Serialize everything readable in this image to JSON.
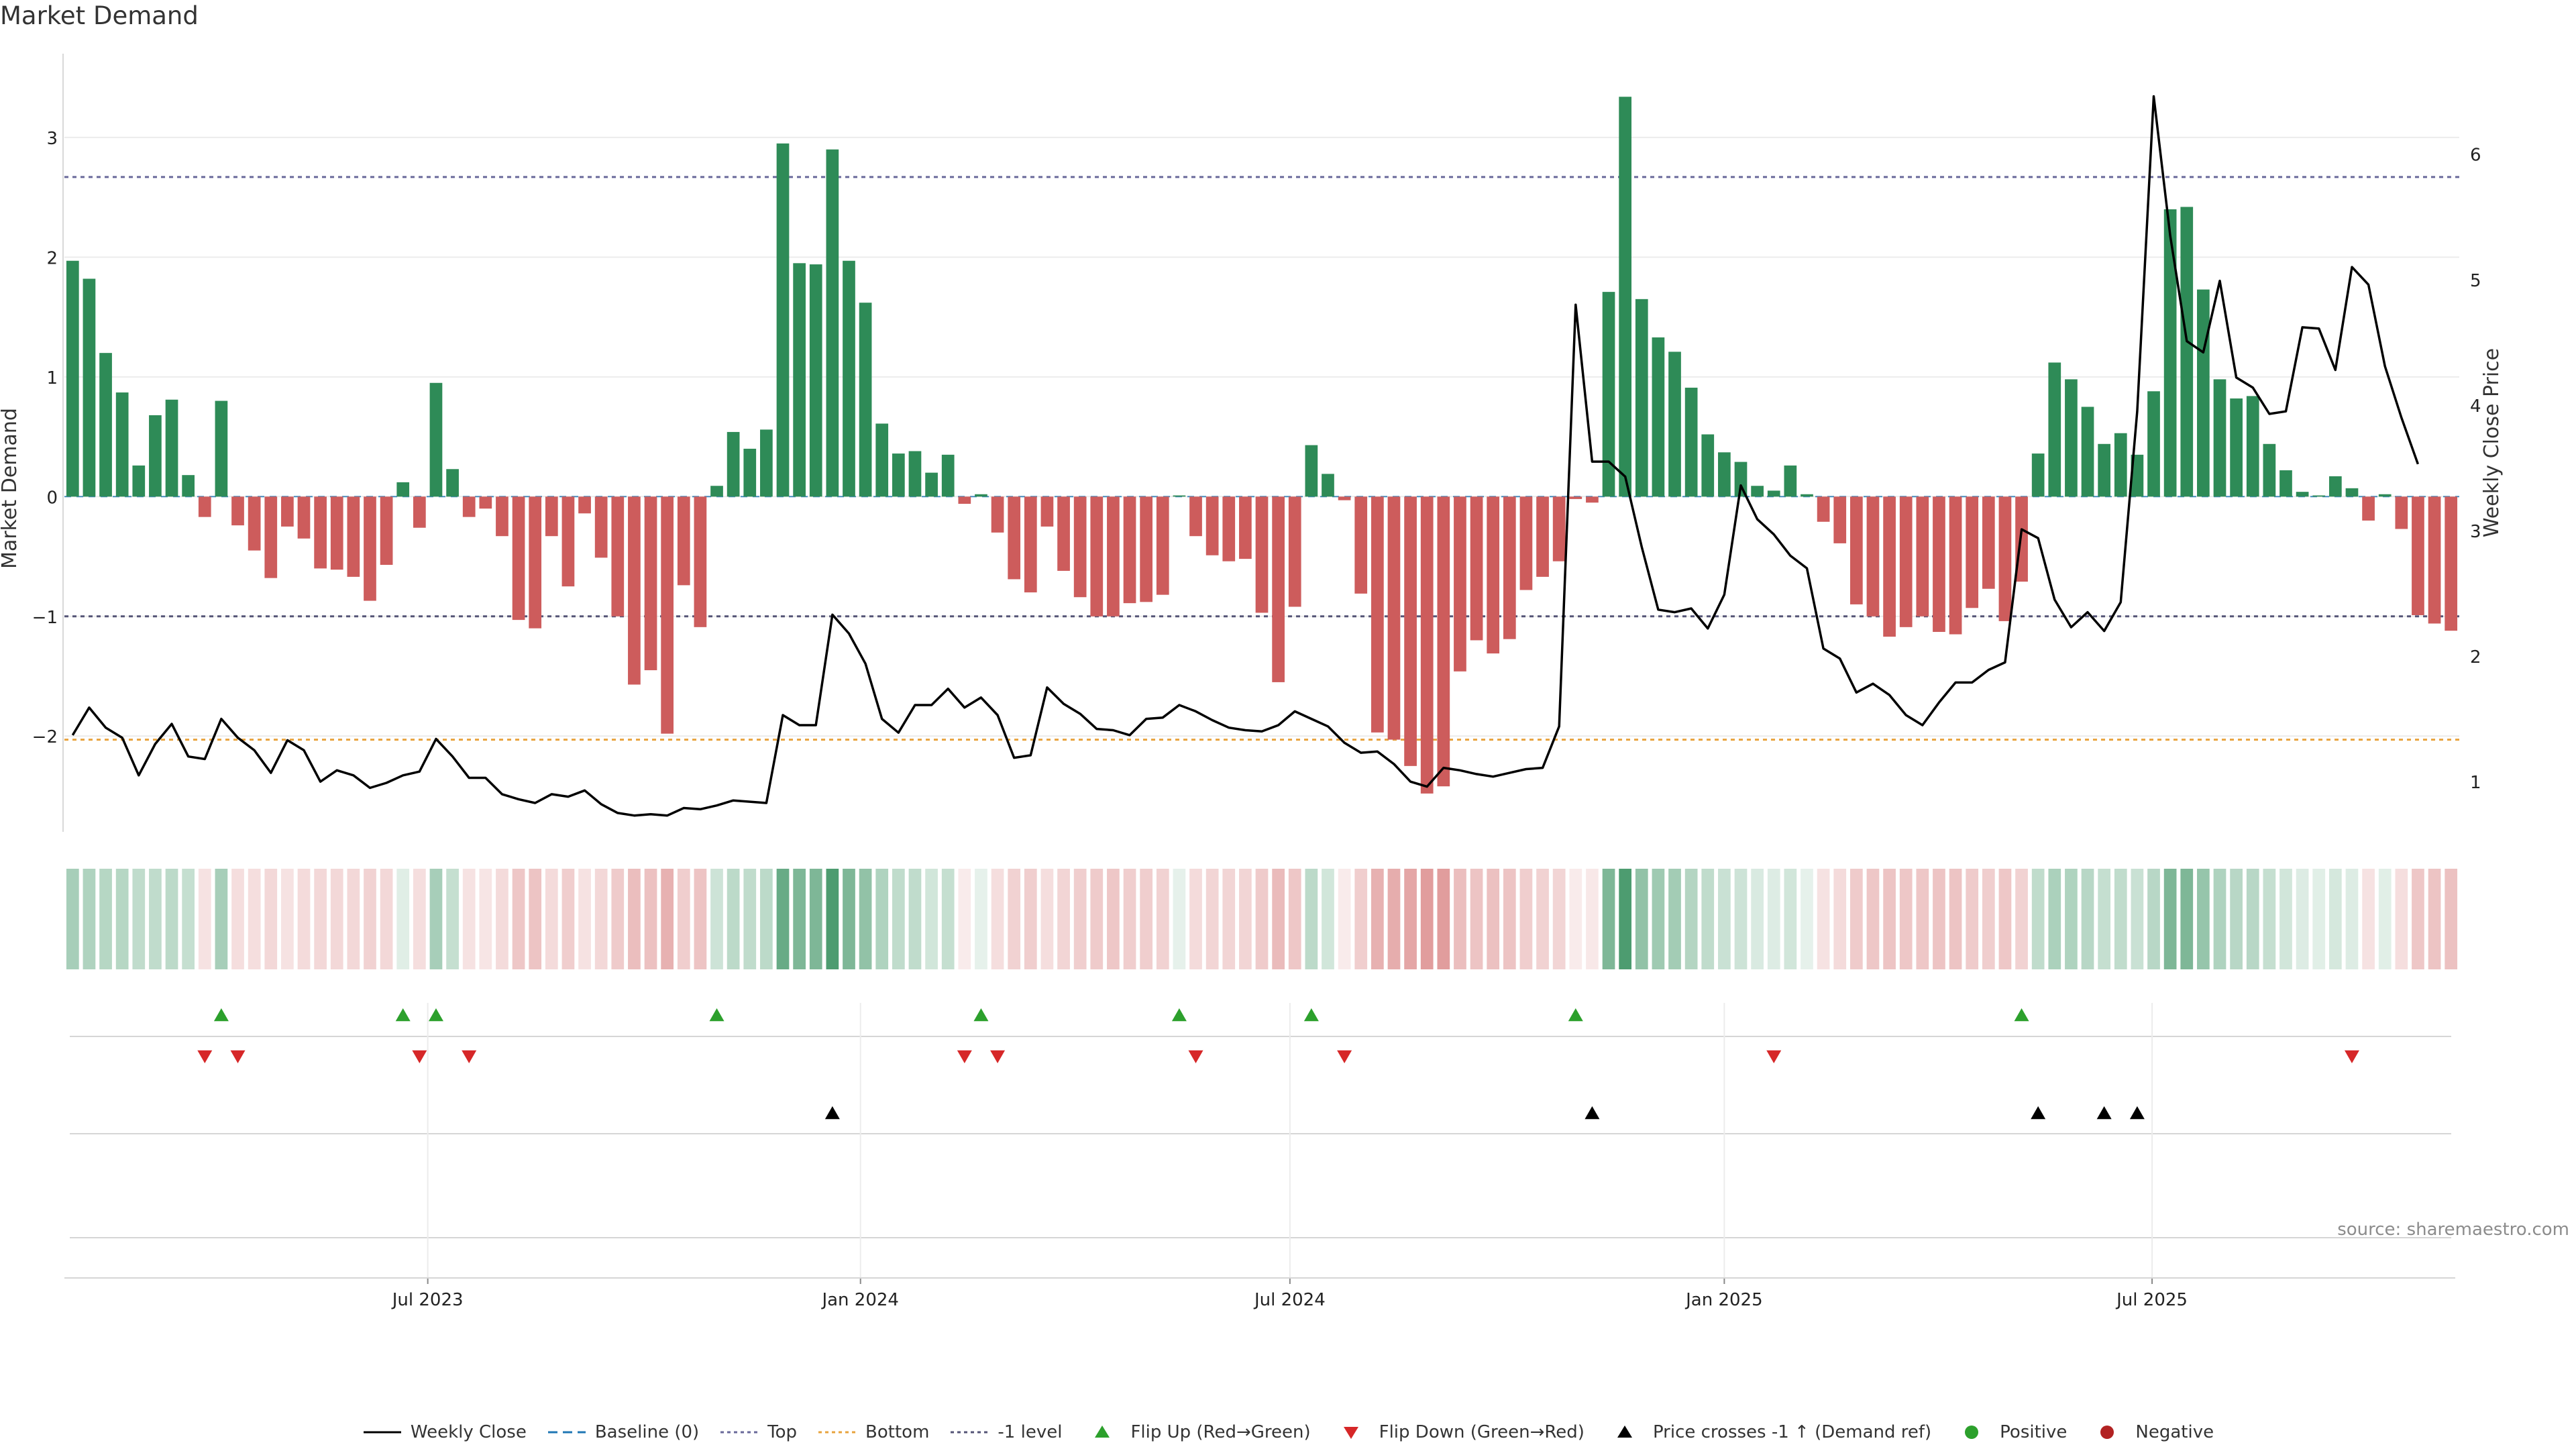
{
  "title": "Market Demand",
  "source": "source: sharemaestro.com",
  "colors": {
    "positive": "#2e8b57",
    "negative": "#cd5c5c",
    "price": "#000000",
    "top": "#6a6a9a",
    "bottom": "#e8a33d",
    "level": "#555577",
    "flip_up": "#2ca02c",
    "flip_down": "#d62728",
    "cross": "#000000",
    "positive_dot": "#2ca02c",
    "negative_dot": "#b22222"
  },
  "legend": [
    {
      "label": "Weekly Close",
      "kind": "line-solid",
      "color": "#000000"
    },
    {
      "label": "Baseline (0)",
      "kind": "line-dash",
      "color": "#1f77b4"
    },
    {
      "label": "Top",
      "kind": "line-dot",
      "color": "#6a6a9a"
    },
    {
      "label": "Bottom",
      "kind": "line-dot",
      "color": "#e8a33d"
    },
    {
      "label": "-1 level",
      "kind": "line-dot",
      "color": "#555577"
    },
    {
      "label": "Flip Up (Red→Green)",
      "kind": "tri-up",
      "color": "#2ca02c"
    },
    {
      "label": "Flip Down (Green→Red)",
      "kind": "tri-down",
      "color": "#d62728"
    },
    {
      "label": "Price crosses -1 ↑ (Demand ref)",
      "kind": "tri-up",
      "color": "#000000"
    },
    {
      "label": "Positive",
      "kind": "dot",
      "color": "#2ca02c"
    },
    {
      "label": "Negative",
      "kind": "dot",
      "color": "#b22222"
    }
  ],
  "chart_data": {
    "type": "bar",
    "title": "Market Demand",
    "xlabel": "",
    "ylabel": "Market Demand",
    "y2label": "Weekly Close Price",
    "ylim": [
      -2.8,
      3.7
    ],
    "y2lim": [
      0.6,
      6.8
    ],
    "yticks": [
      -2,
      -1,
      0,
      1,
      2,
      3
    ],
    "y2ticks": [
      1,
      2,
      3,
      4,
      5,
      6
    ],
    "reference_lines": {
      "top": 2.67,
      "bottom": -2.03,
      "minus_one": -1.0,
      "baseline": 0
    },
    "x_start_week": 0,
    "x_tick_labels": [
      {
        "label": "Jul 2023",
        "week": 21.5
      },
      {
        "label": "Jan 2024",
        "week": 47.7
      },
      {
        "label": "Jul 2024",
        "week": 73.7
      },
      {
        "label": "Jan 2025",
        "week": 100.0
      },
      {
        "label": "Jul 2025",
        "week": 125.9
      }
    ],
    "demand": [
      1.97,
      1.82,
      1.2,
      0.87,
      0.26,
      0.68,
      0.81,
      0.18,
      -0.17,
      0.8,
      -0.24,
      -0.45,
      -0.68,
      -0.25,
      -0.35,
      -0.6,
      -0.61,
      -0.67,
      -0.87,
      -0.57,
      0.12,
      -0.26,
      0.95,
      0.23,
      -0.17,
      -0.1,
      -0.33,
      -1.03,
      -1.1,
      -0.33,
      -0.75,
      -0.14,
      -0.51,
      -1.0,
      -1.57,
      -1.45,
      -1.98,
      -0.74,
      -1.09,
      0.09,
      0.54,
      0.4,
      0.56,
      2.95,
      1.95,
      1.94,
      2.9,
      1.97,
      1.62,
      0.61,
      0.36,
      0.38,
      0.2,
      0.35,
      -0.06,
      0.02,
      -0.3,
      -0.69,
      -0.8,
      -0.25,
      -0.62,
      -0.84,
      -1.0,
      -1.0,
      -0.89,
      -0.88,
      -0.82,
      0.01,
      -0.33,
      -0.49,
      -0.54,
      -0.52,
      -0.97,
      -1.55,
      -0.92,
      0.43,
      0.19,
      -0.03,
      -0.81,
      -1.97,
      -2.03,
      -2.25,
      -2.48,
      -2.42,
      -1.46,
      -1.2,
      -1.31,
      -1.19,
      -0.78,
      -0.67,
      -0.54,
      -0.02,
      -0.05,
      1.71,
      3.34,
      1.65,
      1.33,
      1.21,
      0.91,
      0.52,
      0.37,
      0.29,
      0.09,
      0.05,
      0.26,
      0.02,
      -0.21,
      -0.39,
      -0.9,
      -1.0,
      -1.17,
      -1.09,
      -1.0,
      -1.13,
      -1.15,
      -0.93,
      -0.77,
      -1.04,
      -0.71,
      0.36,
      1.12,
      0.98,
      0.75,
      0.44,
      0.53,
      0.35,
      0.88,
      2.4,
      2.42,
      1.73,
      0.98,
      0.82,
      0.84,
      0.44,
      0.22,
      0.04,
      0.01,
      0.17,
      0.07,
      -0.2,
      0.02,
      -0.27,
      -0.99,
      -1.06,
      -1.12
    ],
    "price": [
      1.37,
      1.59,
      1.43,
      1.35,
      1.05,
      1.3,
      1.46,
      1.2,
      1.18,
      1.5,
      1.35,
      1.25,
      1.07,
      1.33,
      1.25,
      1.0,
      1.09,
      1.05,
      0.95,
      0.99,
      1.05,
      1.08,
      1.34,
      1.2,
      1.03,
      1.03,
      0.9,
      0.86,
      0.83,
      0.9,
      0.88,
      0.93,
      0.82,
      0.75,
      0.73,
      0.74,
      0.73,
      0.79,
      0.78,
      0.81,
      0.85,
      0.84,
      0.83,
      1.53,
      1.45,
      1.45,
      2.33,
      2.18,
      1.94,
      1.5,
      1.39,
      1.61,
      1.61,
      1.74,
      1.59,
      1.67,
      1.53,
      1.19,
      1.21,
      1.75,
      1.62,
      1.54,
      1.42,
      1.41,
      1.37,
      1.5,
      1.51,
      1.61,
      1.56,
      1.49,
      1.43,
      1.41,
      1.4,
      1.45,
      1.56,
      1.5,
      1.44,
      1.31,
      1.23,
      1.24,
      1.14,
      1.0,
      0.96,
      1.11,
      1.09,
      1.06,
      1.04,
      1.07,
      1.1,
      1.11,
      1.44,
      4.8,
      3.55,
      3.55,
      3.43,
      2.87,
      2.37,
      2.35,
      2.38,
      2.22,
      2.49,
      3.36,
      3.09,
      2.97,
      2.8,
      2.7,
      2.06,
      1.98,
      1.71,
      1.78,
      1.69,
      1.53,
      1.45,
      1.63,
      1.79,
      1.79,
      1.89,
      1.95,
      3.01,
      2.94,
      2.45,
      2.23,
      2.35,
      2.2,
      2.43,
      3.95,
      6.46,
      5.35,
      4.51,
      4.42,
      4.99,
      4.22,
      4.14,
      3.93,
      3.95,
      4.62,
      4.61,
      4.28,
      5.1,
      4.96,
      4.31,
      3.9,
      3.53
    ],
    "shading_levels": [
      0.42,
      0.38,
      0.35,
      0.35,
      0.3,
      0.3,
      0.32,
      0.28,
      0.18,
      0.42,
      0.2,
      0.2,
      0.24,
      0.18,
      0.22,
      0.24,
      0.24,
      0.24,
      0.28,
      0.24,
      0.15,
      0.2,
      0.42,
      0.28,
      0.18,
      0.16,
      0.22,
      0.34,
      0.36,
      0.22,
      0.3,
      0.18,
      0.24,
      0.32,
      0.4,
      0.38,
      0.48,
      0.3,
      0.36,
      0.24,
      0.32,
      0.3,
      0.32,
      0.72,
      0.62,
      0.62,
      0.85,
      0.62,
      0.52,
      0.38,
      0.3,
      0.3,
      0.22,
      0.28,
      0.12,
      0.12,
      0.2,
      0.28,
      0.3,
      0.2,
      0.26,
      0.3,
      0.32,
      0.34,
      0.3,
      0.3,
      0.28,
      0.12,
      0.22,
      0.26,
      0.26,
      0.26,
      0.32,
      0.42,
      0.34,
      0.32,
      0.22,
      0.12,
      0.3,
      0.48,
      0.5,
      0.55,
      0.6,
      0.6,
      0.4,
      0.36,
      0.38,
      0.36,
      0.3,
      0.28,
      0.26,
      0.12,
      0.14,
      0.62,
      0.85,
      0.52,
      0.46,
      0.44,
      0.36,
      0.3,
      0.26,
      0.24,
      0.18,
      0.16,
      0.22,
      0.12,
      0.18,
      0.22,
      0.32,
      0.34,
      0.36,
      0.34,
      0.34,
      0.36,
      0.36,
      0.32,
      0.3,
      0.34,
      0.28,
      0.3,
      0.4,
      0.38,
      0.34,
      0.28,
      0.3,
      0.26,
      0.34,
      0.62,
      0.62,
      0.5,
      0.38,
      0.34,
      0.34,
      0.28,
      0.22,
      0.16,
      0.14,
      0.2,
      0.16,
      0.18,
      0.14,
      0.2,
      0.34,
      0.36,
      0.38
    ],
    "flip_up_weeks": [
      9,
      20,
      22,
      39,
      55,
      67,
      75,
      91,
      118
    ],
    "flip_down_weeks": [
      8,
      10,
      21,
      24,
      54,
      56,
      68,
      77,
      103,
      138
    ],
    "price_cross_weeks": [
      46,
      92,
      119,
      123,
      125
    ]
  }
}
